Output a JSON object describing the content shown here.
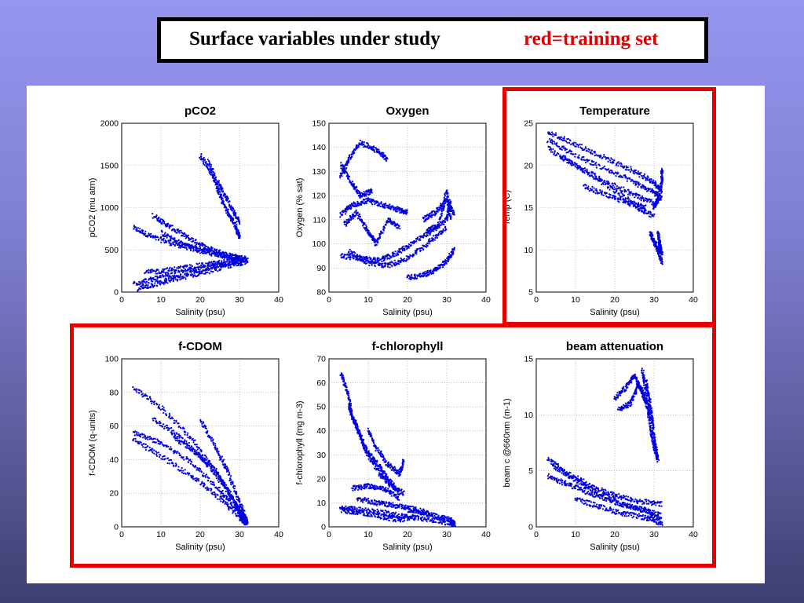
{
  "header": {
    "title": "Surface variables under study",
    "note": "red=training set"
  },
  "chart_data": [
    {
      "type": "scatter",
      "title": "pCO2",
      "xlabel": "Salinity (psu)",
      "ylabel": "pCO2 (mu atm)",
      "xlim": [
        0,
        40
      ],
      "ylim": [
        0,
        2000
      ],
      "xticks": [
        0,
        10,
        20,
        30,
        40
      ],
      "yticks": [
        0,
        500,
        1000,
        1500,
        2000
      ],
      "grid": true,
      "training_set": false,
      "color": "#0000dd",
      "strands": [
        [
          [
            3,
            760
          ],
          [
            8,
            650
          ],
          [
            14,
            560
          ],
          [
            20,
            490
          ],
          [
            26,
            430
          ],
          [
            32,
            390
          ]
        ],
        [
          [
            8,
            910
          ],
          [
            12,
            780
          ],
          [
            17,
            640
          ],
          [
            22,
            520
          ],
          [
            27,
            440
          ],
          [
            32,
            380
          ]
        ],
        [
          [
            10,
            700
          ],
          [
            15,
            580
          ],
          [
            20,
            500
          ],
          [
            26,
            440
          ],
          [
            31,
            400
          ]
        ],
        [
          [
            20,
            1620
          ],
          [
            23,
            1400
          ],
          [
            25,
            1150
          ],
          [
            27,
            950
          ],
          [
            29,
            780
          ],
          [
            30,
            650
          ]
        ],
        [
          [
            22,
            1550
          ],
          [
            25,
            1250
          ],
          [
            28,
            1000
          ],
          [
            30,
            820
          ]
        ],
        [
          [
            3,
            100
          ],
          [
            8,
            150
          ],
          [
            14,
            210
          ],
          [
            20,
            270
          ],
          [
            26,
            330
          ],
          [
            32,
            380
          ]
        ],
        [
          [
            4,
            40
          ],
          [
            10,
            110
          ],
          [
            16,
            180
          ],
          [
            22,
            250
          ],
          [
            28,
            320
          ],
          [
            32,
            370
          ]
        ],
        [
          [
            6,
            230
          ],
          [
            12,
            260
          ],
          [
            18,
            300
          ],
          [
            24,
            340
          ],
          [
            30,
            380
          ]
        ]
      ]
    },
    {
      "type": "scatter",
      "title": "Oxygen",
      "xlabel": "Salinity (psu)",
      "ylabel": "Oxygen (% sat)",
      "xlim": [
        0,
        40
      ],
      "ylim": [
        80,
        150
      ],
      "xticks": [
        0,
        10,
        20,
        30,
        40
      ],
      "yticks": [
        80,
        90,
        100,
        110,
        120,
        130,
        140,
        150
      ],
      "grid": true,
      "training_set": false,
      "color": "#0000dd",
      "strands": [
        [
          [
            3,
            95
          ],
          [
            8,
            94
          ],
          [
            12,
            93
          ],
          [
            16,
            95
          ],
          [
            20,
            99
          ],
          [
            25,
            104
          ],
          [
            30,
            110
          ],
          [
            31,
            118
          ]
        ],
        [
          [
            5,
            97
          ],
          [
            10,
            92
          ],
          [
            15,
            91
          ],
          [
            20,
            94
          ],
          [
            25,
            100
          ],
          [
            30,
            107
          ]
        ],
        [
          [
            20,
            86
          ],
          [
            24,
            87
          ],
          [
            27,
            89
          ],
          [
            30,
            93
          ],
          [
            32,
            98
          ]
        ],
        [
          [
            3,
            112
          ],
          [
            6,
            116
          ],
          [
            10,
            118
          ],
          [
            14,
            116
          ],
          [
            18,
            114
          ],
          [
            20,
            113
          ]
        ],
        [
          [
            3,
            128
          ],
          [
            5,
            135
          ],
          [
            8,
            142
          ],
          [
            12,
            139
          ],
          [
            15,
            135
          ]
        ],
        [
          [
            4,
            108
          ],
          [
            7,
            113
          ],
          [
            10,
            105
          ],
          [
            12,
            100
          ],
          [
            15,
            110
          ],
          [
            18,
            107
          ]
        ],
        [
          [
            24,
            110
          ],
          [
            27,
            113
          ],
          [
            30,
            118
          ],
          [
            32,
            112
          ]
        ],
        [
          [
            25,
            105
          ],
          [
            28,
            108
          ],
          [
            30,
            122
          ],
          [
            31,
            110
          ]
        ],
        [
          [
            3,
            133
          ],
          [
            6,
            125
          ],
          [
            8,
            120
          ],
          [
            11,
            122
          ]
        ]
      ]
    },
    {
      "type": "scatter",
      "title": "Temperature",
      "xlabel": "Salinity (psu)",
      "ylabel": "Temp (C)",
      "xlim": [
        0,
        40
      ],
      "ylim": [
        5,
        25
      ],
      "xticks": [
        0,
        10,
        20,
        30,
        40
      ],
      "yticks": [
        5,
        10,
        15,
        20,
        25
      ],
      "grid": true,
      "training_set": true,
      "color": "#0000dd",
      "strands": [
        [
          [
            3,
            24
          ],
          [
            10,
            22.5
          ],
          [
            18,
            20.8
          ],
          [
            25,
            19.3
          ],
          [
            30,
            18
          ],
          [
            32,
            17
          ]
        ],
        [
          [
            3,
            23
          ],
          [
            10,
            21.2
          ],
          [
            18,
            19.5
          ],
          [
            25,
            18
          ],
          [
            30,
            16.8
          ],
          [
            32,
            16
          ]
        ],
        [
          [
            3,
            22
          ],
          [
            10,
            20
          ],
          [
            18,
            18
          ],
          [
            25,
            16.5
          ],
          [
            30,
            15.5
          ]
        ],
        [
          [
            6,
            21
          ],
          [
            12,
            19.5
          ],
          [
            20,
            17
          ],
          [
            26,
            15
          ],
          [
            30,
            14
          ]
        ],
        [
          [
            12,
            17.6
          ],
          [
            18,
            16.5
          ],
          [
            24,
            15.5
          ],
          [
            28,
            15
          ]
        ],
        [
          [
            29,
            12
          ],
          [
            30,
            11
          ],
          [
            31,
            10
          ],
          [
            32,
            8.5
          ]
        ],
        [
          [
            31,
            12
          ],
          [
            31.5,
            10.5
          ],
          [
            32,
            9.5
          ]
        ],
        [
          [
            30,
            15
          ],
          [
            31,
            16
          ],
          [
            32,
            18
          ],
          [
            32,
            19.5
          ]
        ]
      ]
    },
    {
      "type": "scatter",
      "title": "f-CDOM",
      "xlabel": "Salinity (psu)",
      "ylabel": "f-CDOM (q-units)",
      "xlim": [
        0,
        40
      ],
      "ylim": [
        0,
        100
      ],
      "xticks": [
        0,
        10,
        20,
        30,
        40
      ],
      "yticks": [
        0,
        20,
        40,
        60,
        80,
        100
      ],
      "grid": true,
      "training_set": true,
      "color": "#0000dd",
      "strands": [
        [
          [
            3,
            83
          ],
          [
            10,
            71
          ],
          [
            18,
            52
          ],
          [
            25,
            30
          ],
          [
            30,
            10
          ],
          [
            32,
            2
          ]
        ],
        [
          [
            3,
            56
          ],
          [
            10,
            50
          ],
          [
            18,
            38
          ],
          [
            25,
            22
          ],
          [
            30,
            8
          ],
          [
            32,
            2
          ]
        ],
        [
          [
            3,
            52
          ],
          [
            10,
            42
          ],
          [
            18,
            30
          ],
          [
            25,
            17
          ],
          [
            30,
            6
          ],
          [
            32,
            1
          ]
        ],
        [
          [
            8,
            64
          ],
          [
            14,
            55
          ],
          [
            20,
            42
          ],
          [
            26,
            25
          ],
          [
            31,
            5
          ]
        ],
        [
          [
            20,
            64
          ],
          [
            24,
            47
          ],
          [
            27,
            33
          ],
          [
            30,
            15
          ],
          [
            32,
            3
          ]
        ],
        [
          [
            13,
            54
          ],
          [
            19,
            44
          ],
          [
            24,
            33
          ],
          [
            28,
            18
          ],
          [
            31,
            5
          ]
        ]
      ]
    },
    {
      "type": "scatter",
      "title": "f-chlorophyll",
      "xlabel": "Salinity (psu)",
      "ylabel": "f-chlorophyll (mg m-3)",
      "xlim": [
        0,
        40
      ],
      "ylim": [
        0,
        70
      ],
      "xticks": [
        0,
        10,
        20,
        30,
        40
      ],
      "yticks": [
        0,
        10,
        20,
        30,
        40,
        50,
        60,
        70
      ],
      "grid": true,
      "training_set": true,
      "color": "#0000dd",
      "strands": [
        [
          [
            3,
            64
          ],
          [
            5,
            55
          ],
          [
            6,
            45
          ],
          [
            8,
            38
          ],
          [
            10,
            30
          ],
          [
            13,
            22
          ],
          [
            16,
            17
          ],
          [
            19,
            14
          ]
        ],
        [
          [
            5,
            50
          ],
          [
            7,
            42
          ],
          [
            9,
            33
          ],
          [
            12,
            27
          ],
          [
            15,
            20
          ],
          [
            18,
            14
          ]
        ],
        [
          [
            10,
            40
          ],
          [
            12,
            33
          ],
          [
            15,
            26
          ],
          [
            18,
            22
          ],
          [
            19,
            28
          ]
        ],
        [
          [
            3,
            8
          ],
          [
            8,
            7
          ],
          [
            14,
            6
          ],
          [
            20,
            4
          ],
          [
            26,
            3
          ],
          [
            32,
            1
          ]
        ],
        [
          [
            3,
            7
          ],
          [
            8,
            6
          ],
          [
            14,
            4
          ],
          [
            18,
            3
          ],
          [
            22,
            4
          ]
        ],
        [
          [
            20,
            7
          ],
          [
            24,
            6
          ],
          [
            28,
            4
          ],
          [
            31,
            3
          ],
          [
            32,
            1
          ]
        ],
        [
          [
            6,
            16
          ],
          [
            10,
            17
          ],
          [
            14,
            16
          ],
          [
            18,
            12
          ]
        ],
        [
          [
            7,
            12
          ],
          [
            12,
            10
          ],
          [
            16,
            9
          ],
          [
            20,
            8
          ],
          [
            25,
            6
          ]
        ]
      ]
    },
    {
      "type": "scatter",
      "title": "beam attenuation",
      "xlabel": "Salinity (psu)",
      "ylabel": "beam c @660nm (m-1)",
      "xlim": [
        0,
        40
      ],
      "ylim": [
        0,
        15
      ],
      "xticks": [
        0,
        10,
        20,
        30,
        40
      ],
      "yticks": [
        0,
        5,
        10,
        15
      ],
      "grid": true,
      "training_set": true,
      "color": "#0000dd",
      "strands": [
        [
          [
            3,
            6
          ],
          [
            8,
            4.8
          ],
          [
            14,
            3.6
          ],
          [
            20,
            2.8
          ],
          [
            26,
            2.3
          ],
          [
            32,
            2
          ]
        ],
        [
          [
            3,
            4.5
          ],
          [
            8,
            3.8
          ],
          [
            14,
            3
          ],
          [
            20,
            2.2
          ],
          [
            26,
            1.6
          ],
          [
            32,
            1
          ]
        ],
        [
          [
            4,
            5.5
          ],
          [
            10,
            4.2
          ],
          [
            16,
            3
          ],
          [
            22,
            2
          ],
          [
            28,
            1.5
          ],
          [
            32,
            0.5
          ]
        ],
        [
          [
            10,
            2.5
          ],
          [
            16,
            1.8
          ],
          [
            22,
            1.2
          ],
          [
            28,
            0.8
          ],
          [
            32,
            0.3
          ]
        ],
        [
          [
            20,
            11.5
          ],
          [
            23,
            12.5
          ],
          [
            25,
            13.5
          ],
          [
            27,
            12
          ],
          [
            29,
            10
          ]
        ],
        [
          [
            21,
            10.5
          ],
          [
            24,
            11
          ],
          [
            26,
            12.8
          ],
          [
            28,
            11.5
          ],
          [
            30,
            9
          ]
        ],
        [
          [
            27,
            14
          ],
          [
            28,
            12
          ],
          [
            29,
            9
          ],
          [
            30,
            7
          ],
          [
            31,
            6
          ]
        ],
        [
          [
            28,
            13
          ],
          [
            29,
            11
          ],
          [
            30,
            8
          ],
          [
            31,
            6
          ]
        ]
      ]
    }
  ]
}
